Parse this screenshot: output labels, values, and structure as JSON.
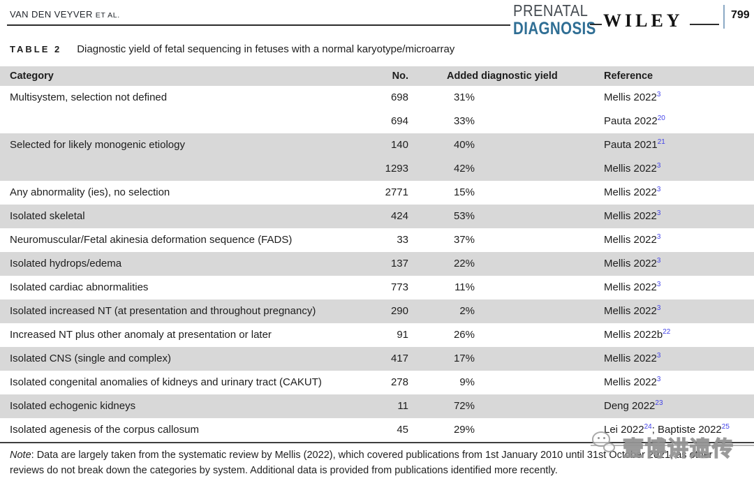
{
  "header": {
    "running_head": "VAN DEN VEYVER",
    "et_al": "ET AL.",
    "journal_line1": "PRENATAL",
    "journal_line2": "DIAGNOSIS",
    "publisher": "WILEY",
    "page_number": "799"
  },
  "table": {
    "label": "TABLE 2",
    "caption": "Diagnostic yield of fetal sequencing in fetuses with a normal karyotype/microarray",
    "columns": [
      "Category",
      "No.",
      "Added diagnostic yield",
      "Reference"
    ],
    "rows": [
      {
        "category": "Multisystem, selection not defined",
        "no": "698",
        "yield": "31%",
        "refs": [
          {
            "text": "Mellis 2022",
            "sup": "3"
          }
        ],
        "shaded": false
      },
      {
        "category": "",
        "no": "694",
        "yield": "33%",
        "refs": [
          {
            "text": "Pauta 2022",
            "sup": "20"
          }
        ],
        "shaded": false
      },
      {
        "category": "Selected for likely monogenic etiology",
        "no": "140",
        "yield": "40%",
        "refs": [
          {
            "text": "Pauta 2021",
            "sup": "21"
          }
        ],
        "shaded": true
      },
      {
        "category": "",
        "no": "1293",
        "yield": "42%",
        "refs": [
          {
            "text": "Mellis 2022",
            "sup": "3"
          }
        ],
        "shaded": true
      },
      {
        "category": "Any abnormality (ies), no selection",
        "no": "2771",
        "yield": "15%",
        "refs": [
          {
            "text": "Mellis 2022",
            "sup": "3"
          }
        ],
        "shaded": false
      },
      {
        "category": "Isolated skeletal",
        "no": "424",
        "yield": "53%",
        "refs": [
          {
            "text": "Mellis 2022",
            "sup": "3"
          }
        ],
        "shaded": true
      },
      {
        "category": "Neuromuscular/Fetal akinesia deformation sequence (FADS)",
        "no": "33",
        "yield": "37%",
        "refs": [
          {
            "text": "Mellis 2022",
            "sup": "3"
          }
        ],
        "shaded": false
      },
      {
        "category": "Isolated hydrops/edema",
        "no": "137",
        "yield": "22%",
        "refs": [
          {
            "text": "Mellis 2022",
            "sup": "3"
          }
        ],
        "shaded": true
      },
      {
        "category": "Isolated cardiac abnormalities",
        "no": "773",
        "yield": "11%",
        "refs": [
          {
            "text": "Mellis 2022",
            "sup": "3"
          }
        ],
        "shaded": false
      },
      {
        "category": "Isolated increased NT (at presentation and throughout pregnancy)",
        "no": "290",
        "yield": "2%",
        "refs": [
          {
            "text": "Mellis 2022",
            "sup": "3"
          }
        ],
        "shaded": true
      },
      {
        "category": "Increased NT plus other anomaly at presentation or later",
        "no": "91",
        "yield": "26%",
        "refs": [
          {
            "text": "Mellis 2022b",
            "sup": "22"
          }
        ],
        "shaded": false
      },
      {
        "category": "Isolated CNS (single and complex)",
        "no": "417",
        "yield": "17%",
        "refs": [
          {
            "text": "Mellis 2022",
            "sup": "3"
          }
        ],
        "shaded": true
      },
      {
        "category": "Isolated congenital anomalies of kidneys and urinary tract (CAKUT)",
        "no": "278",
        "yield": "9%",
        "refs": [
          {
            "text": "Mellis 2022",
            "sup": "3"
          }
        ],
        "shaded": false
      },
      {
        "category": "Isolated echogenic kidneys",
        "no": "11",
        "yield": "72%",
        "refs": [
          {
            "text": "Deng 2022",
            "sup": "23"
          }
        ],
        "shaded": true
      },
      {
        "category": "Isolated agenesis of the corpus callosum",
        "no": "45",
        "yield": "29%",
        "refs": [
          {
            "text": "Lei 2022",
            "sup": "24"
          },
          {
            "text": "; Baptiste 2022",
            "sup": "25"
          }
        ],
        "shaded": false
      }
    ]
  },
  "note": {
    "label": "Note",
    "text": ": Data are largely taken from the systematic review by Mellis (2022), which covered publications from 1st January 2010 until 31st October 2021, as other reviews do not break down the categories by system. Additional data is provided from publications identified more recently."
  },
  "watermark": {
    "text": "壹博讲遗传"
  },
  "colors": {
    "journal_blue": "#2f6e94",
    "citation_blue": "#4343e8",
    "row_shade": "#d8d8d8",
    "page_bar_blue": "#8aa9c4"
  }
}
